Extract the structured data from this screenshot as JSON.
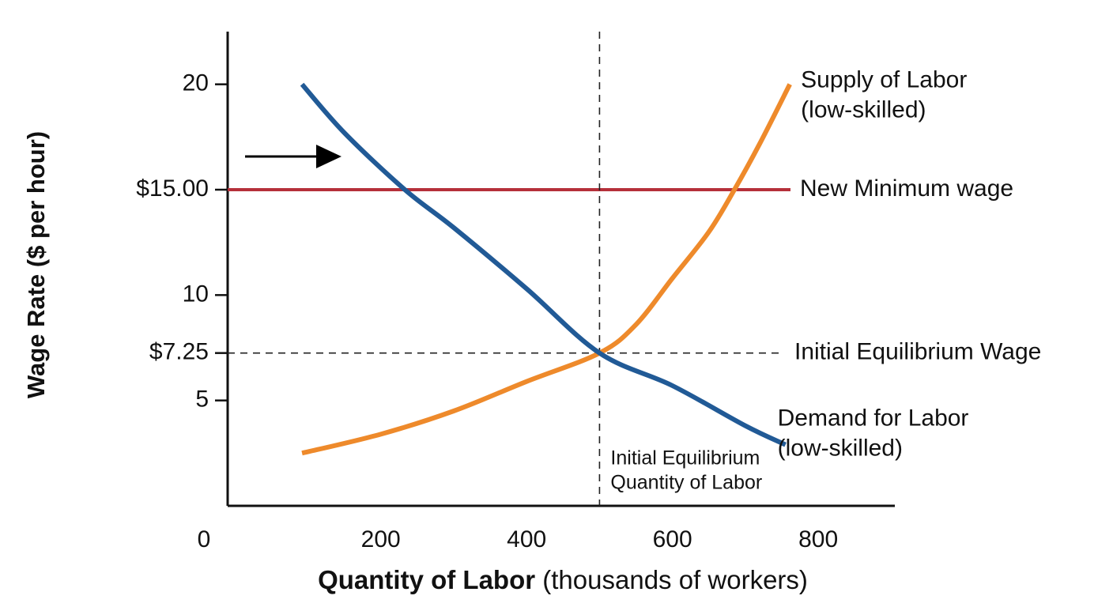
{
  "chart_data": {
    "type": "line",
    "ylabel": "Wage Rate ($ per hour)",
    "xlabel": {
      "bold": "Quantity of Labor",
      "rest": "(thousands of workers)"
    },
    "xlim": [
      -10,
      905
    ],
    "ylim": [
      0,
      22.5
    ],
    "xticks": [
      0,
      200,
      400,
      600,
      800
    ],
    "yticks": [
      5,
      {
        "value": 7.25,
        "label": "$7.25"
      },
      10,
      {
        "value": 15,
        "label": "$15.00"
      },
      20
    ],
    "series": [
      {
        "name_lines": [
          "Supply of Labor",
          "(low-skilled)"
        ],
        "color": "#ee8a2b",
        "x": [
          92,
          200,
          300,
          400,
          500,
          550,
          600,
          650,
          685,
          720,
          761
        ],
        "y": [
          2.5,
          3.4,
          4.5,
          5.9,
          7.25,
          8.6,
          10.8,
          13,
          15,
          17.2,
          20
        ]
      },
      {
        "name_lines": [
          "Demand for Labor",
          "(low-skilled)"
        ],
        "color": "#215a96",
        "x": [
          92,
          150,
          233,
          300,
          400,
          500,
          600,
          700,
          755
        ],
        "y": [
          20,
          17.7,
          15,
          13.2,
          10.3,
          7.25,
          5.7,
          3.8,
          2.9
        ]
      }
    ],
    "hlines": [
      {
        "value": 15,
        "label": "New Minimum wage",
        "color": "#b5303a",
        "style": "solid"
      },
      {
        "value": 7.25,
        "label": "Initial Equilibrium Wage",
        "color": "#222222",
        "style": "dashed"
      }
    ],
    "vlines": [
      {
        "value": 500,
        "label_lines": [
          "Initial Equilibrium",
          "Quantity of Labor"
        ],
        "color": "#222222",
        "style": "dashed"
      }
    ]
  }
}
